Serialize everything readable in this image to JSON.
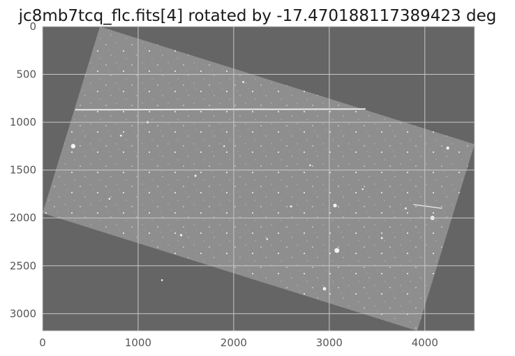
{
  "chart_data": {
    "type": "heatmap",
    "title": "jc8mb7tcq_flc.fits[4] rotated by -17.470188117389423 deg",
    "xlabel": "",
    "ylabel": "",
    "xlim": [
      0,
      4520
    ],
    "ylim": [
      3180,
      0
    ],
    "x_ticks": [
      0,
      1000,
      2000,
      3000,
      4000
    ],
    "y_ticks": [
      0,
      500,
      1000,
      1500,
      2000,
      2500,
      3000
    ],
    "x_tick_labels": [
      "0",
      "1000",
      "2000",
      "3000",
      "4000"
    ],
    "y_tick_labels": [
      "0",
      "500",
      "1000",
      "1500",
      "2000",
      "2500",
      "3000"
    ],
    "grid": true,
    "rotation_deg": -17.470188117389423,
    "image_corners": [
      [
        600,
        0
      ],
      [
        4520,
        1230
      ],
      [
        3920,
        3180
      ],
      [
        0,
        1950
      ]
    ],
    "colors": {
      "background": "#656565",
      "image_area": "#8e8e8e",
      "grid": "#c8c8c8",
      "axes_edge": "#cccccc",
      "tick_text": "#555555"
    }
  }
}
